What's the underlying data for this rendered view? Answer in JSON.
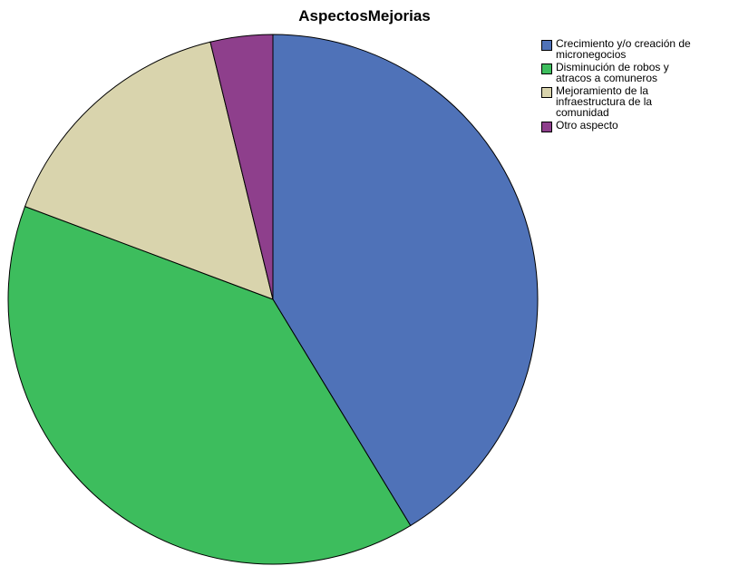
{
  "chart_data": {
    "type": "pie",
    "title": "AspectosMejorias",
    "series": [
      {
        "name": "Crecimiento y/o creación de micronegocios",
        "color": "#4f72b8",
        "values": [
          41.3
        ]
      },
      {
        "name": "Disminución de robos y atracos a comuneros",
        "color": "#3dbd5d",
        "values": [
          39.4
        ]
      },
      {
        "name": "Mejoramiento de la infraestructura de la comunidad",
        "color": "#d9d4ad",
        "values": [
          15.5
        ]
      },
      {
        "name": "Otro aspecto",
        "color": "#8e3f8c",
        "values": [
          3.8
        ]
      }
    ],
    "legend": "right"
  }
}
